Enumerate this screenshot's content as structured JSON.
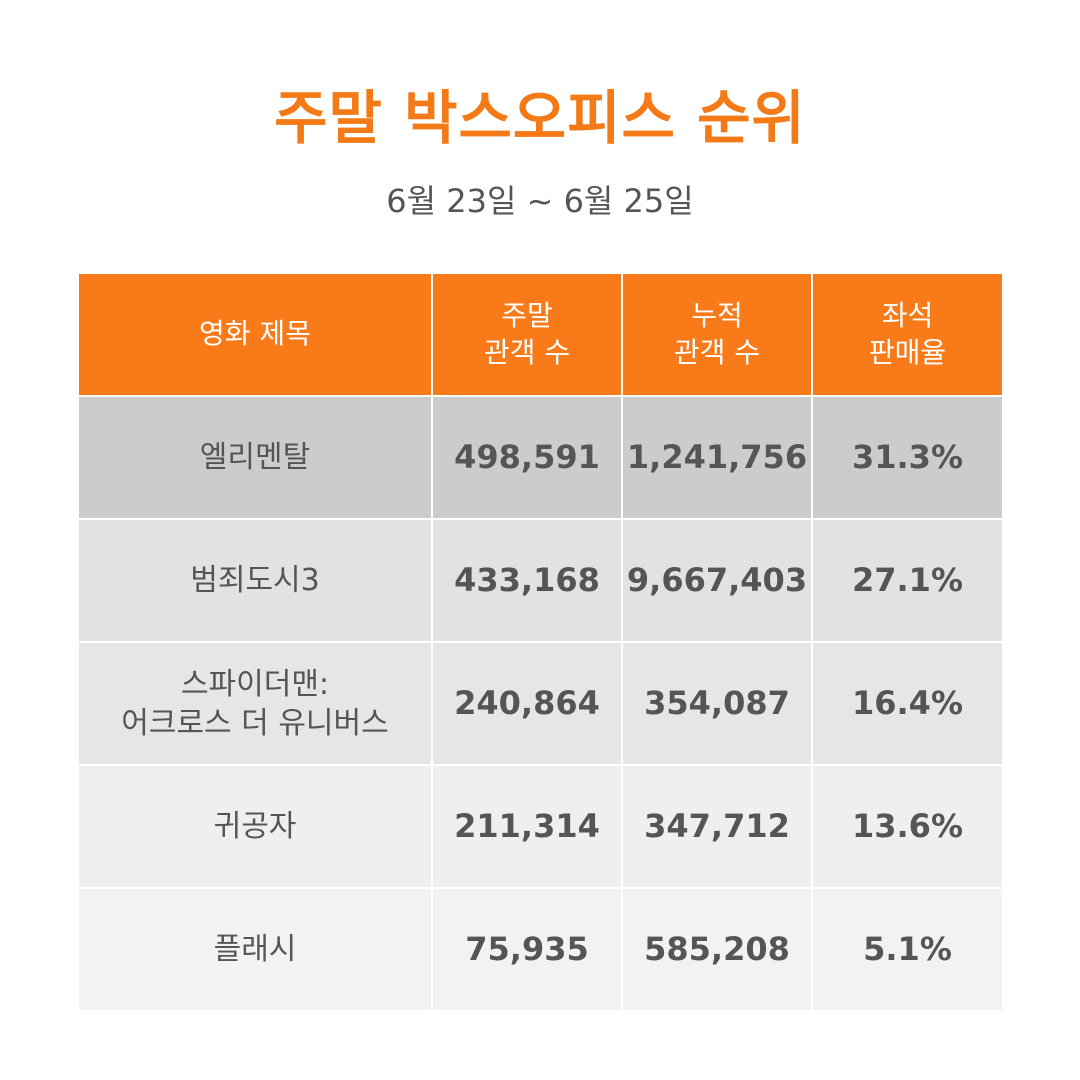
{
  "header": {
    "title": "주말 박스오피스 순위",
    "date_range": "6월 23일 ~ 6월 25일"
  },
  "table": {
    "columns": {
      "title": "영화 제목",
      "weekend_line1": "주말",
      "weekend_line2": "관객 수",
      "cumulative_line1": "누적",
      "cumulative_line2": "관객 수",
      "seat_line1": "좌석",
      "seat_line2": "판매율"
    },
    "rows": [
      {
        "title_line1": "엘리멘탈",
        "title_line2": "",
        "weekend": "498,591",
        "cumulative": "1,241,756",
        "seat_rate": "31.3%"
      },
      {
        "title_line1": "범죄도시3",
        "title_line2": "",
        "weekend": "433,168",
        "cumulative": "9,667,403",
        "seat_rate": "27.1%"
      },
      {
        "title_line1": "스파이더맨:",
        "title_line2": "어크로스 더 유니버스",
        "weekend": "240,864",
        "cumulative": "354,087",
        "seat_rate": "16.4%"
      },
      {
        "title_line1": "귀공자",
        "title_line2": "",
        "weekend": "211,314",
        "cumulative": "347,712",
        "seat_rate": "13.6%"
      },
      {
        "title_line1": "플래시",
        "title_line2": "",
        "weekend": "75,935",
        "cumulative": "585,208",
        "seat_rate": "5.1%"
      }
    ],
    "row_colors": [
      "#cccccc",
      "#e2e2e2",
      "#e6e6e6",
      "#efefef",
      "#f2f2f2"
    ]
  },
  "colors": {
    "accent": "#f47a17",
    "header_bg": "#f87a18",
    "text": "#555555"
  }
}
